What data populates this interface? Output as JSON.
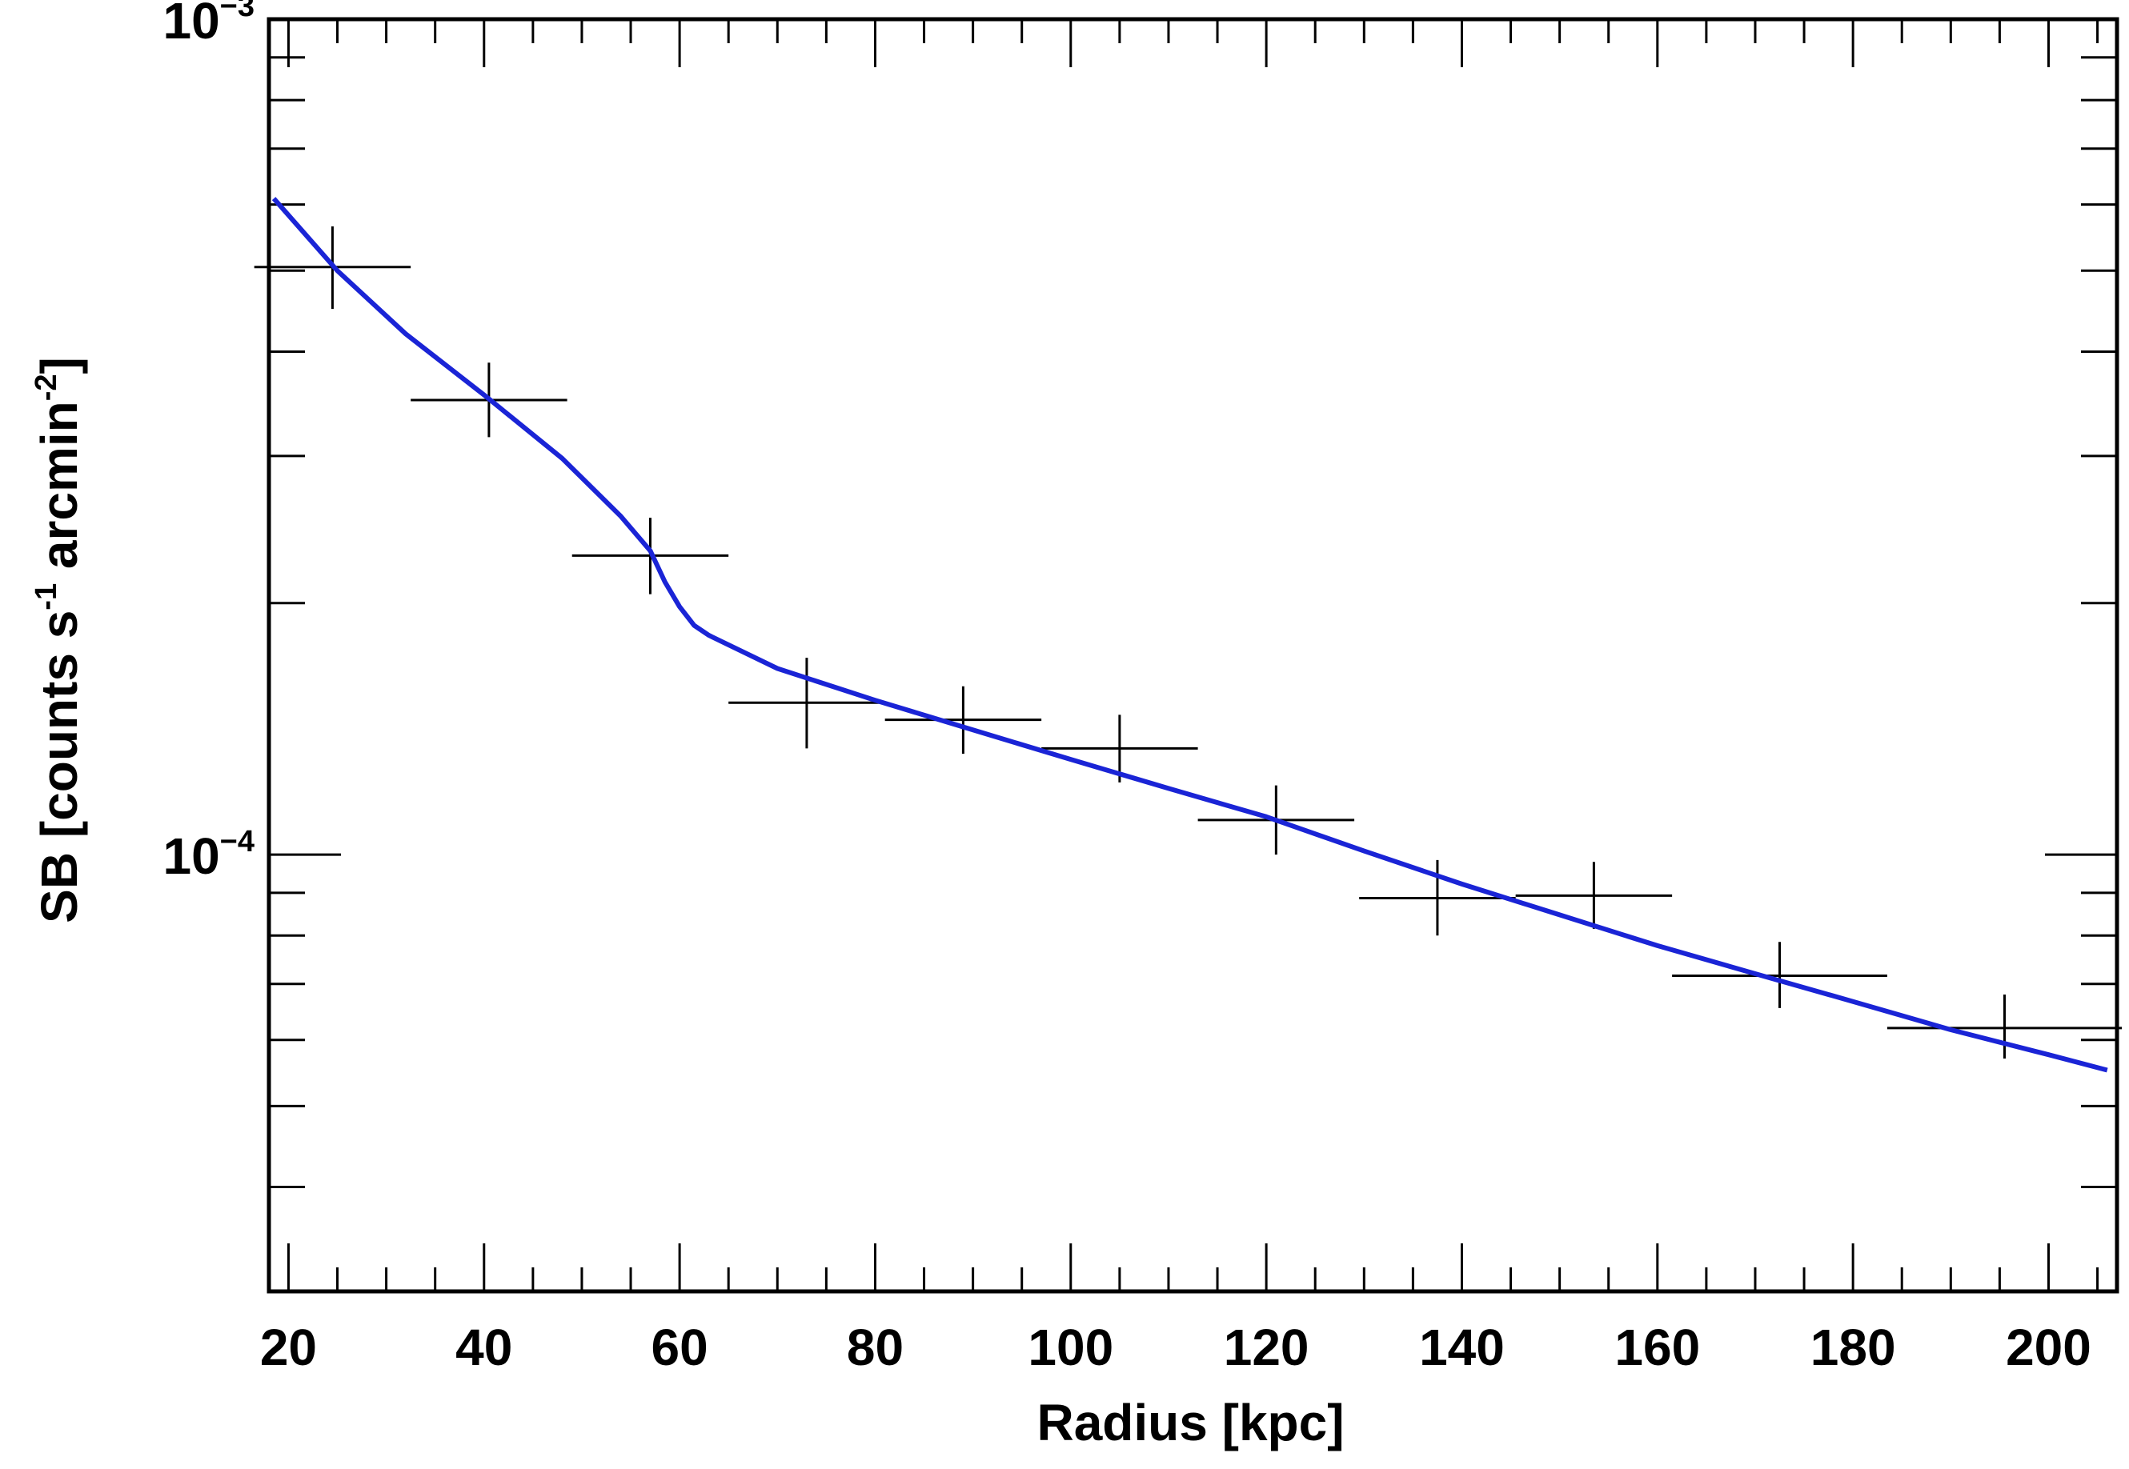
{
  "chart_data": {
    "type": "scatter",
    "xlabel": "Radius [kpc]",
    "ylabel": {
      "parts": [
        "SB [counts s",
        "-1",
        " arcmin",
        "-2",
        "]"
      ]
    },
    "xlim": [
      18,
      207
    ],
    "ylim": [
      3e-05,
      0.001
    ],
    "y_scale": "log",
    "x_ticks": [
      20,
      40,
      60,
      80,
      100,
      120,
      140,
      160,
      180,
      200
    ],
    "x_tick_labels": [
      "20",
      "40",
      "60",
      "80",
      "100",
      "120",
      "140",
      "160",
      "180",
      "200"
    ],
    "y_major_ticks": [
      {
        "value": 0.001,
        "base": "10",
        "exp": "−3"
      },
      {
        "value": 0.0001,
        "base": "10",
        "exp": "−4"
      }
    ],
    "colors": {
      "data": "#000000",
      "model": "#1a24d6",
      "frame": "#000000"
    },
    "series": [
      {
        "type": "errorbar",
        "points": [
          {
            "x": 24.5,
            "xerr": 8,
            "y": 0.000505,
            "ylo": 0.00045,
            "yhi": 0.000565
          },
          {
            "x": 40.5,
            "xerr": 8,
            "y": 0.00035,
            "ylo": 0.000316,
            "yhi": 0.000388
          },
          {
            "x": 57.0,
            "xerr": 8,
            "y": 0.000228,
            "ylo": 0.000205,
            "yhi": 0.000253
          },
          {
            "x": 73.0,
            "xerr": 8,
            "y": 0.000152,
            "ylo": 0.000134,
            "yhi": 0.000172
          },
          {
            "x": 89.0,
            "xerr": 8,
            "y": 0.000145,
            "ylo": 0.000132,
            "yhi": 0.000159
          },
          {
            "x": 105.0,
            "xerr": 8,
            "y": 0.000134,
            "ylo": 0.000122,
            "yhi": 0.000147
          },
          {
            "x": 121.0,
            "xerr": 8,
            "y": 0.00011,
            "ylo": 0.0001,
            "yhi": 0.000121
          },
          {
            "x": 137.5,
            "xerr": 8,
            "y": 8.87e-05,
            "ylo": 8e-05,
            "yhi": 9.85e-05
          },
          {
            "x": 153.5,
            "xerr": 8,
            "y": 8.93e-05,
            "ylo": 8.15e-05,
            "yhi": 9.8e-05
          },
          {
            "x": 172.5,
            "xerr": 11,
            "y": 7.16e-05,
            "ylo": 6.55e-05,
            "yhi": 7.86e-05
          },
          {
            "x": 195.5,
            "xerr": 12,
            "y": 6.2e-05,
            "ylo": 5.7e-05,
            "yhi": 6.8e-05
          }
        ]
      },
      {
        "type": "line",
        "points": [
          {
            "x": 18.5,
            "y": 0.00061
          },
          {
            "x": 25,
            "y": 0.0005
          },
          {
            "x": 32,
            "y": 0.00042
          },
          {
            "x": 40,
            "y": 0.000355
          },
          {
            "x": 48,
            "y": 0.000298
          },
          {
            "x": 54,
            "y": 0.000254
          },
          {
            "x": 57,
            "y": 0.000231
          },
          {
            "x": 58.5,
            "y": 0.000212
          },
          {
            "x": 60,
            "y": 0.000198
          },
          {
            "x": 61.5,
            "y": 0.000188
          },
          {
            "x": 63,
            "y": 0.000183
          },
          {
            "x": 70,
            "y": 0.000167
          },
          {
            "x": 80,
            "y": 0.000153
          },
          {
            "x": 90,
            "y": 0.000141
          },
          {
            "x": 100,
            "y": 0.00013
          },
          {
            "x": 110,
            "y": 0.00012
          },
          {
            "x": 120,
            "y": 0.000111
          },
          {
            "x": 130,
            "y": 0.000101
          },
          {
            "x": 140,
            "y": 9.22e-05
          },
          {
            "x": 150,
            "y": 8.47e-05
          },
          {
            "x": 160,
            "y": 7.78e-05
          },
          {
            "x": 170,
            "y": 7.2e-05
          },
          {
            "x": 180,
            "y": 6.67e-05
          },
          {
            "x": 190,
            "y": 6.17e-05
          },
          {
            "x": 200,
            "y": 5.76e-05
          },
          {
            "x": 206,
            "y": 5.52e-05
          }
        ]
      }
    ]
  }
}
